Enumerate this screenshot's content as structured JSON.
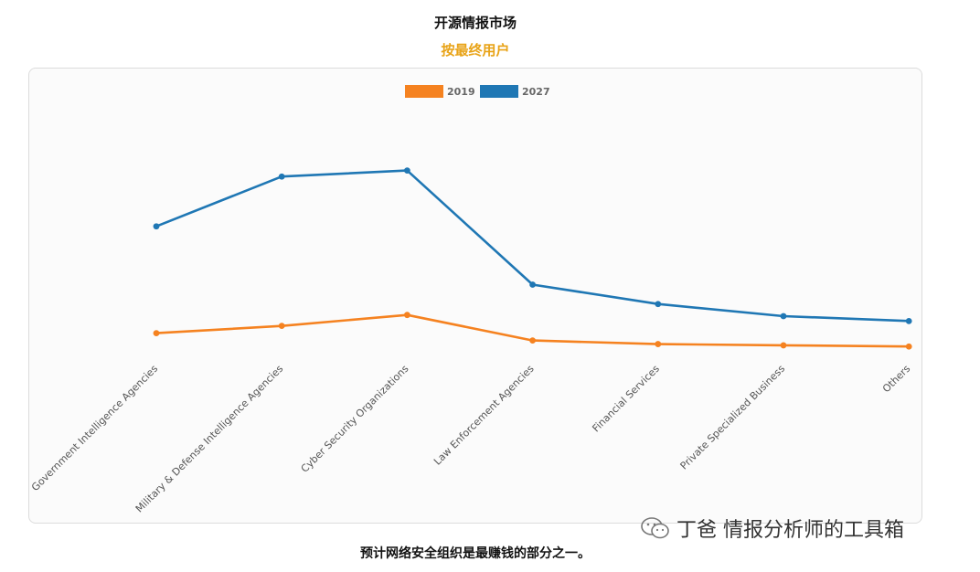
{
  "header": {
    "title": "开源情报市场",
    "subtitle": "按最终用户",
    "subtitle_color": "#e8a317"
  },
  "footer": {
    "caption": "预计网络安全组织是最赚钱的部分之一。"
  },
  "watermark": {
    "text": "丁爸 情报分析师的工具箱",
    "icon": "wechat-icon"
  },
  "chart_data": {
    "type": "line",
    "title": "开源情报市场",
    "subtitle": "按最终用户",
    "categories": [
      "Government Intelligence Agencies",
      "Military & Defense Intelligence Agencies",
      "Cyber Security Organizations",
      "Law Enforcement Agencies",
      "Financial Services",
      "Private Specialized Business",
      "Others"
    ],
    "series": [
      {
        "name": "2019",
        "color": "#f58220",
        "values": [
          31,
          34,
          38.5,
          28,
          26.5,
          26,
          25.5
        ]
      },
      {
        "name": "2027",
        "color": "#1f77b4",
        "values": [
          75,
          95.5,
          98,
          51,
          43,
          38,
          36
        ]
      }
    ],
    "ylim": [
      0,
      140
    ],
    "y_axis_visible": false,
    "grid": false,
    "legend": "top-center",
    "xlabel": "",
    "ylabel": ""
  }
}
